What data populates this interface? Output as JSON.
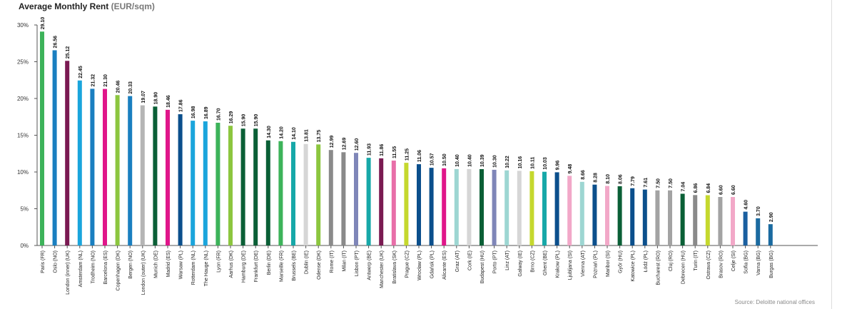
{
  "chart_data": {
    "type": "bar",
    "title": "Average Monthly Rent",
    "title_unit": "(EUR/sqm)",
    "source": "Source: Deloitte national offices",
    "ylim": [
      0,
      30
    ],
    "yticks": [
      "0%",
      "5%",
      "10%",
      "15%",
      "20%",
      "25%",
      "30%"
    ],
    "grid": false,
    "categories": [
      "Paris (FR)",
      "Oslo (NO)",
      "London (inner) (UK)",
      "Amsterdam (NL)",
      "Trodheim (NO)",
      "Barcelona (ES)",
      "Copenhagen (DK)",
      "Bergen (NO)",
      "London (outer) (UK)",
      "Munich (DE)",
      "Madrid (ES)",
      "Warsaw (PL)",
      "Rotterdam (NL)",
      "The Hauge (NL)",
      "Lyon (FR)",
      "Aarhus (DK)",
      "Hamburg (DE)",
      "Frankfurt (DE)",
      "Berlin (DE)",
      "Marseille (FR)",
      "Brussels (BE)",
      "Dublin (IE)",
      "Odense (DK)",
      "Rome (IT)",
      "Milan (IT)",
      "Lisbon (PT)",
      "Antwerp (BE)",
      "Manchester (UK)",
      "Bratislava (SK)",
      "Prague (CZ)",
      "Wrocław (PL)",
      "Gdańsk (PL)",
      "Alicante (ES)",
      "Graz (AT)",
      "Cork (IE)",
      "Budapest (HU)",
      "Porto (PT)",
      "Linz (AT)",
      "Galway (IE)",
      "Brno (CZ)",
      "Ghent (BE)",
      "Krakow (PL)",
      "Ljubljana (SI)",
      "Vienna (AT)",
      "Poznań (PL)",
      "Maribor (SI)",
      "Győr (HU)",
      "Katowice (PL)",
      "Łódź (PL)",
      "Bucharest (RO)",
      "Cluj (RO)",
      "Debrecen (HU)",
      "Turin (IT)",
      "Ostrava (CZ)",
      "Brasov (RO)",
      "Celje (SI)",
      "Sofia (BG)",
      "Varna (BG)",
      "Burgas (BG)"
    ],
    "values": [
      29.1,
      26.56,
      25.12,
      22.45,
      21.32,
      21.3,
      20.46,
      20.33,
      19.07,
      18.9,
      18.46,
      17.86,
      16.98,
      16.89,
      16.7,
      16.29,
      15.9,
      15.9,
      14.3,
      14.2,
      14.1,
      13.81,
      13.75,
      12.99,
      12.69,
      12.6,
      11.93,
      11.86,
      11.55,
      11.25,
      11.06,
      10.57,
      10.5,
      10.4,
      10.4,
      10.39,
      10.3,
      10.22,
      10.16,
      10.11,
      10.03,
      9.96,
      9.48,
      8.66,
      8.28,
      8.1,
      8.06,
      7.79,
      7.61,
      7.5,
      7.5,
      7.04,
      6.86,
      6.84,
      6.6,
      6.6,
      4.6,
      3.7,
      2.9
    ],
    "labels": [
      "29.10",
      "26.56",
      "25.12",
      "22.45",
      "21.32",
      "21.30",
      "20.46",
      "20.33",
      "19.07",
      "18.90",
      "18.46",
      "17.86",
      "16.98",
      "16.89",
      "16.70",
      "16.29",
      "15.90",
      "15.90",
      "14.30",
      "14.20",
      "14.10",
      "13.81",
      "13.75",
      "12.99",
      "12.69",
      "12.60",
      "11.93",
      "11.86",
      "11.55",
      "11.25",
      "11.06",
      "10.57",
      "10.50",
      "10.40",
      "10.40",
      "10.39",
      "10.30",
      "10.22",
      "10.16",
      "10.11",
      "10.03",
      "9.96",
      "9.48",
      "8.66",
      "8.28",
      "8.10",
      "8.06",
      "7.79",
      "7.61",
      "7.50",
      "7.50",
      "7.04",
      "6.86",
      "6.84",
      "6.60",
      "6.60",
      "4.60",
      "3.70",
      "2.90"
    ],
    "colors": [
      "#3db35a",
      "#1a7fc0",
      "#7a1a52",
      "#1aa5dc",
      "#1a7fc0",
      "#e0168a",
      "#8cc63f",
      "#1a7fc0",
      "#b5b5b5",
      "#0a5f36",
      "#e0168a",
      "#0b4f8c",
      "#1aa5dc",
      "#1aa5dc",
      "#3db35a",
      "#8cc63f",
      "#0a5f36",
      "#0a5f36",
      "#0a5f36",
      "#3db35a",
      "#17a8a8",
      "#d6d6d6",
      "#8cc63f",
      "#8a8a8a",
      "#8a8a8a",
      "#7f86b8",
      "#17a8a8",
      "#7a1a52",
      "#e86ea8",
      "#c5d82e",
      "#0b4f8c",
      "#0b4f8c",
      "#e0168a",
      "#9dd6d2",
      "#d6d6d6",
      "#0a5f36",
      "#7f86b8",
      "#9dd6d2",
      "#d6d6d6",
      "#c5d82e",
      "#17a8a8",
      "#0b4f8c",
      "#f2a8c8",
      "#9dd6d2",
      "#0b4f8c",
      "#f2a8c8",
      "#0a5f36",
      "#0b4f8c",
      "#0b4f8c",
      "#a3a3a3",
      "#a3a3a3",
      "#0a5f36",
      "#8a8a8a",
      "#c5d82e",
      "#a3a3a3",
      "#f2a8c8",
      "#1a5fa0",
      "#1a6aa0",
      "#1a6aa0"
    ]
  }
}
